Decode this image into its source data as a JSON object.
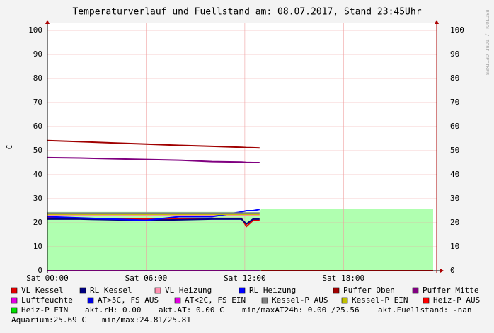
{
  "chart_data": {
    "type": "line",
    "title": "Temperaturverlauf und Fuellstand am: 08.07.2017, Stand 23:45Uhr",
    "y_label": "C",
    "watermark": "RRDTOOL / TOBI OETIKER",
    "x": [
      0,
      2,
      4,
      6,
      8,
      10,
      11.8,
      12.1,
      12.5,
      12.9,
      13,
      23.45
    ],
    "xlim": [
      0,
      23.45
    ],
    "xticks": [
      {
        "value": 0,
        "label": "Sat 00:00"
      },
      {
        "value": 6,
        "label": "Sat 06:00"
      },
      {
        "value": 12,
        "label": "Sat 12:00"
      },
      {
        "value": 18,
        "label": "Sat 18:00"
      }
    ],
    "ylim": [
      0,
      100
    ],
    "yticks": [
      0,
      10,
      20,
      30,
      40,
      50,
      60,
      70,
      80,
      90,
      100
    ],
    "grid": true,
    "series": [
      {
        "name": "VL Kessel",
        "color": "#e00000",
        "values": [
          22,
          21.8,
          21.5,
          21.5,
          21.5,
          21.8,
          21.8,
          18.5,
          21,
          21,
          null,
          null
        ]
      },
      {
        "name": "RL Kessel",
        "color": "#000080",
        "values": [
          21.5,
          21.5,
          21.2,
          21,
          21.2,
          21.5,
          21.5,
          19.5,
          21.5,
          21.5,
          null,
          null
        ]
      },
      {
        "name": "VL Heizung",
        "color": "#ff90b0",
        "values": [
          23,
          23,
          23,
          23,
          23,
          23,
          23,
          23,
          23,
          23,
          null,
          null
        ]
      },
      {
        "name": "RL Heizung",
        "color": "#0000ff",
        "values": [
          22.5,
          22,
          21.5,
          21,
          22.5,
          22.5,
          24.5,
          25,
          25,
          25.5,
          null,
          null
        ]
      },
      {
        "name": "Puffer Oben",
        "color": "#a00000",
        "values": [
          54.2,
          53.7,
          53.2,
          52.7,
          52.2,
          51.8,
          51.4,
          51.3,
          51.2,
          51.1,
          null,
          null
        ]
      },
      {
        "name": "Puffer Mitte",
        "color": "#800080",
        "values": [
          47.1,
          46.9,
          46.6,
          46.3,
          46,
          45.4,
          45.2,
          45.1,
          45,
          45,
          null,
          null
        ]
      },
      {
        "name": "Luftfeuchte",
        "color": "#e000e0",
        "values": [
          0,
          0,
          0,
          0,
          0,
          0,
          0,
          0,
          0,
          0,
          null,
          null
        ]
      },
      {
        "name": "AT>5C, FS AUS",
        "color": "#0000e0",
        "values": [
          null,
          null,
          null,
          null,
          null,
          null,
          null,
          null,
          null,
          null,
          null,
          null
        ]
      },
      {
        "name": "AT<2C, FS EIN",
        "color": "#e000e0",
        "values": [
          null,
          null,
          null,
          null,
          null,
          null,
          null,
          null,
          null,
          null,
          null,
          null
        ]
      },
      {
        "name": "Kessel-P AUS",
        "color": "#808080",
        "values": [
          24,
          24,
          24,
          24,
          24,
          24,
          24,
          24,
          24,
          24,
          null,
          null
        ]
      },
      {
        "name": "Kessel-P EIN",
        "color": "#c0c000",
        "values": [
          23.5,
          23.5,
          23.5,
          23.5,
          23.5,
          23.5,
          23.5,
          23.5,
          23.5,
          23.5,
          null,
          null
        ]
      },
      {
        "name": "Heiz-P AUS",
        "color": "#ff0000",
        "values": [
          null,
          null,
          null,
          null,
          null,
          null,
          null,
          null,
          null,
          null,
          0,
          0
        ]
      },
      {
        "name": "Heiz-P EIN",
        "color": "#00e000",
        "fill": "#b0ffb0",
        "kind": "area",
        "values": [
          24.5,
          24.5,
          24.5,
          24.5,
          24.5,
          24.5,
          24.5,
          24.5,
          24.5,
          24.5,
          25.7,
          25.7
        ]
      }
    ],
    "annotations": [
      "akt.rH: 0.00",
      "akt.AT: 0.00 C",
      "min/maxAT24h: 0.00 /25.56",
      "akt.Fuellstand: -nan",
      "Aquarium:25.69 C",
      "min/max:24.81/25.81"
    ]
  }
}
